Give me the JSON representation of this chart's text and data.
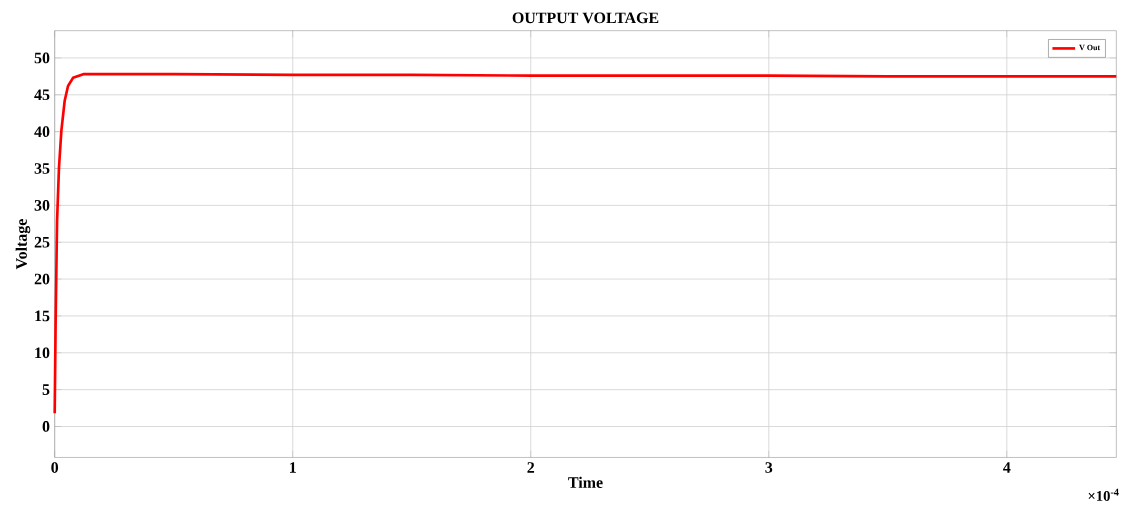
{
  "chart_data": {
    "type": "line",
    "title": "OUTPUT VOLTAGE",
    "xlabel": "Time",
    "ylabel": "Voltage",
    "annotations": [
      "×10$^{-4}$"
    ],
    "x": [
      0,
      0.004,
      0.01,
      0.018,
      0.028,
      0.042,
      0.056,
      0.077,
      0.12,
      0.2,
      0.5,
      1,
      1.5,
      2,
      2.5,
      3,
      3.5,
      4,
      4.46
    ],
    "series": [
      {
        "name": "V Out",
        "color": "#ff0000",
        "values": [
          1.8,
          14.4,
          27.9,
          35.1,
          40.1,
          44.2,
          46.2,
          47.3,
          47.8,
          47.8,
          47.8,
          47.7,
          47.7,
          47.6,
          47.6,
          47.6,
          47.5,
          47.5,
          47.5
        ]
      }
    ],
    "xlim": [
      0,
      4.46
    ],
    "ylim": [
      -4.2,
      53.7
    ],
    "xticks": [
      0,
      1,
      2,
      3,
      4
    ],
    "yticks": [
      0,
      5,
      10,
      15,
      20,
      25,
      30,
      35,
      40,
      45,
      50
    ],
    "grid": true,
    "legend": "top right",
    "marker": "none",
    "line_style": "solid"
  }
}
